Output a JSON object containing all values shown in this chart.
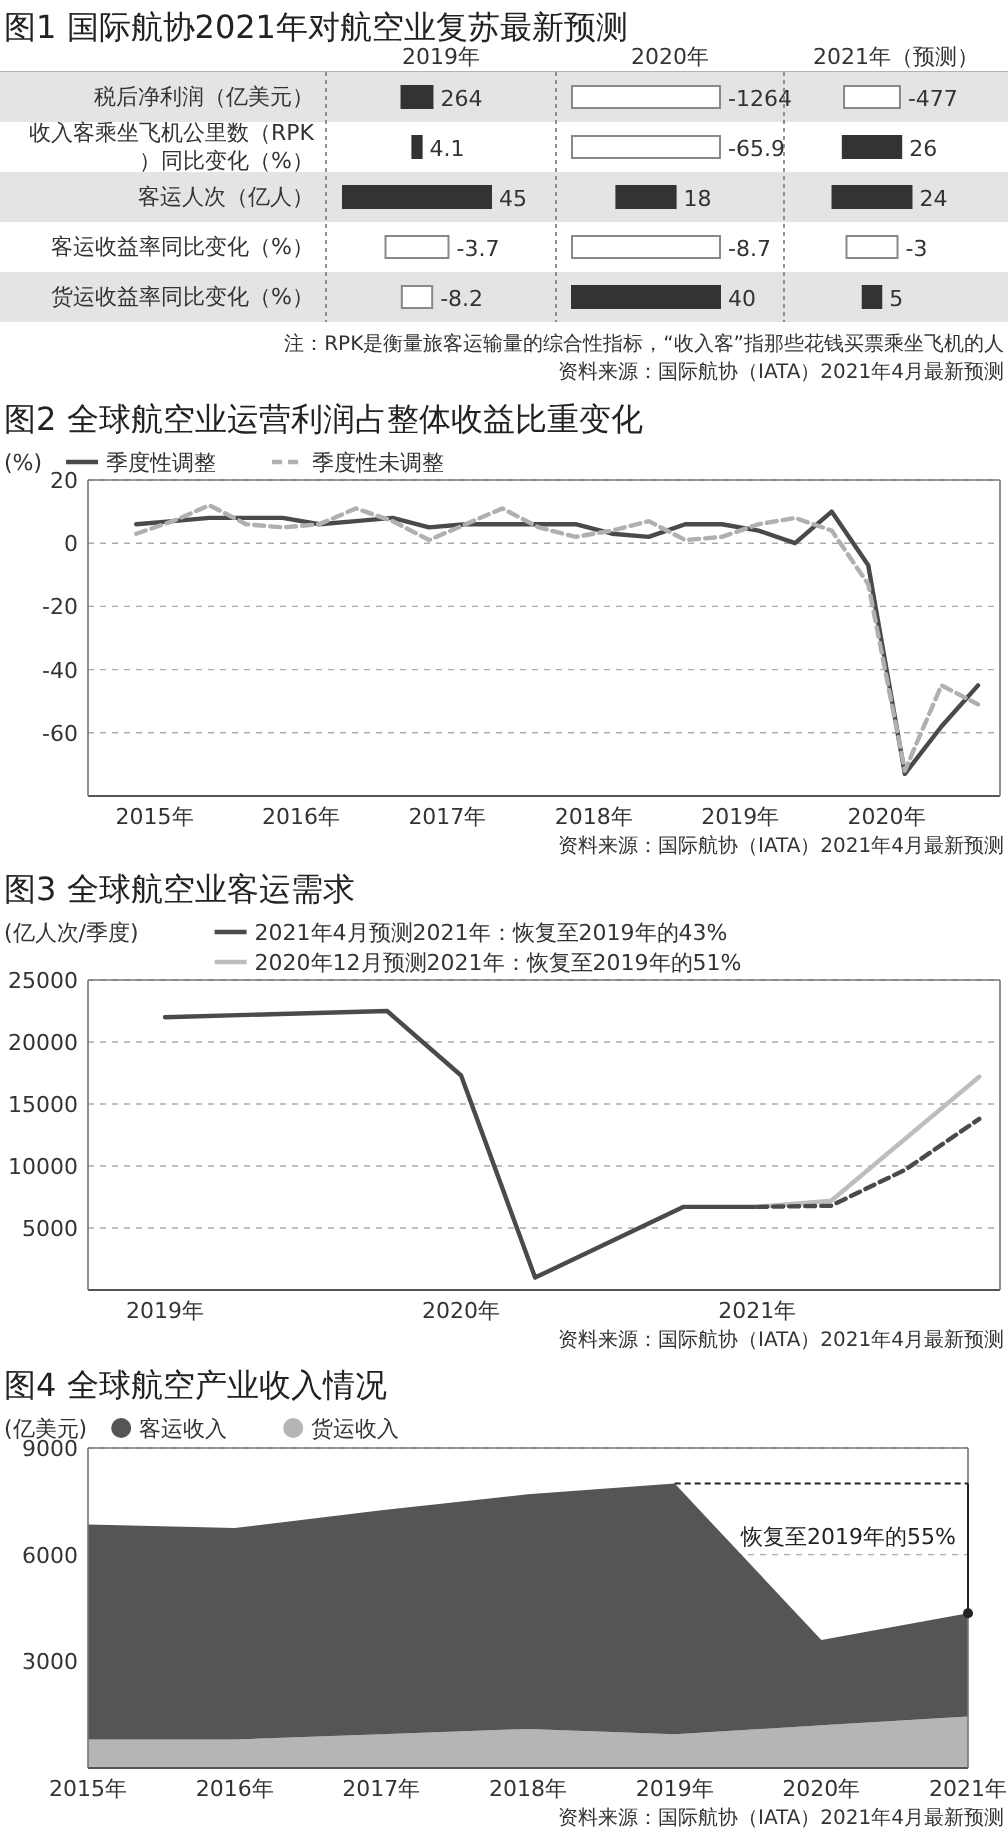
{
  "chart_data": [
    {
      "type": "heatmap",
      "title": "图1 国际航协2021年对航空业复苏最新预测",
      "categories": [
        "2019年",
        "2020年",
        "2021年（预测）"
      ],
      "y_categories": [
        "税后净利润（亿美元）",
        "收入客乘坐飞机公里数（RPK）同比变化（%）",
        "客运人次（亿人）",
        "客运收益率同比变化（%）",
        "货运收益率同比变化（%）"
      ],
      "cells": [
        [
          264,
          -1264,
          -477
        ],
        [
          4.1,
          -65.9,
          26
        ],
        [
          45,
          18,
          24
        ],
        [
          -3.7,
          -8.7,
          -3
        ],
        [
          -8.2,
          40,
          5
        ]
      ],
      "data_labels": true,
      "annotations": [
        "注：RPK是衡量旅客运输量的综合性指标，“收入客”指那些花钱买票乘坐飞机的人",
        "资料来源：国际航协（IATA）2021年4月最新预测"
      ]
    },
    {
      "type": "line",
      "title": "图2 全球航空业运营利润占整体收益比重变化",
      "ylabel": "(%)",
      "x": [
        2015,
        2015.25,
        2015.5,
        2015.75,
        2016,
        2016.25,
        2016.5,
        2016.75,
        2017,
        2017.25,
        2017.5,
        2017.75,
        2018,
        2018.25,
        2018.5,
        2018.75,
        2019,
        2019.25,
        2019.5,
        2019.75,
        2020,
        2020.25,
        2020.5,
        2020.75
      ],
      "series": [
        {
          "name": "季度性调整",
          "color": "#4a4a4a",
          "line_style": "solid",
          "values": [
            6,
            7,
            8,
            8,
            8,
            6,
            7,
            8,
            5,
            6,
            6,
            6,
            6,
            3,
            2,
            6,
            6,
            4,
            0,
            10,
            -7,
            -73,
            -58,
            -45
          ]
        },
        {
          "name": "季度性未调整",
          "color": "#b0b0b0",
          "line_style": "dashed",
          "values": [
            3,
            7,
            12,
            6,
            5,
            6,
            11,
            7,
            1,
            6,
            11,
            5,
            2,
            4,
            7,
            1,
            2,
            6,
            8,
            4,
            -13,
            -72,
            -45,
            -51
          ]
        }
      ],
      "xlim": [
        2014.67,
        2020.9
      ],
      "xticks": [
        {
          "value": 2015.125,
          "label": "2015年"
        },
        {
          "value": 2016.125,
          "label": "2016年"
        },
        {
          "value": 2017.125,
          "label": "2017年"
        },
        {
          "value": 2018.125,
          "label": "2018年"
        },
        {
          "value": 2019.125,
          "label": "2019年"
        },
        {
          "value": 2020.125,
          "label": "2020年"
        }
      ],
      "ylim": [
        -80,
        20
      ],
      "yticks": [
        -60,
        -40,
        -20,
        0,
        20
      ],
      "grid": "y",
      "legend": "top left",
      "annotations": [
        "资料来源：国际航协（IATA）2021年4月最新预测"
      ]
    },
    {
      "type": "line",
      "title": "图3 全球航空业客运需求",
      "ylabel": "(亿人次/季度)",
      "series": [
        {
          "name": "2021年4月预测2021年：恢复至2019年的43%",
          "color": "#4a4a4a",
          "line_style": "solid",
          "x": [
            2019,
            2019.75,
            2020,
            2020.25,
            2020.75,
            2021
          ],
          "values": [
            22000,
            22500,
            17300,
            1000,
            6700,
            6700
          ]
        },
        {
          "name": "2020年12月预测2021年：恢复至2019年的51%",
          "color": "#bdbdbd",
          "line_style": "solid",
          "x": [
            2021,
            2021.25,
            2021.75
          ],
          "values": [
            6700,
            7200,
            17200
          ]
        },
        {
          "color": "#4a4a4a",
          "line_style": "dashed",
          "x": [
            2021,
            2021.25,
            2021.5,
            2021.75
          ],
          "values": [
            6700,
            6800,
            9700,
            13800
          ]
        }
      ],
      "xlim": [
        2018.74,
        2021.82
      ],
      "xticks": [
        {
          "value": 2019,
          "label": "2019年"
        },
        {
          "value": 2020,
          "label": "2020年"
        },
        {
          "value": 2021,
          "label": "2021年"
        }
      ],
      "ylim": [
        0,
        25000
      ],
      "yticks": [
        5000,
        10000,
        15000,
        20000,
        25000
      ],
      "grid": "y",
      "legend": "top left",
      "annotations": [
        "资料来源：国际航协（IATA）2021年4月最新预测"
      ]
    },
    {
      "type": "area",
      "title": "图4 全球航空产业收入情况",
      "ylabel": "(亿美元)",
      "stacked": true,
      "x": [
        2015,
        2016,
        2017,
        2018,
        2019,
        2020,
        2021
      ],
      "series": [
        {
          "name": "货运收入",
          "color": "#b5b5b5",
          "values": [
            800,
            800,
            950,
            1100,
            950,
            1200,
            1450
          ]
        },
        {
          "name": "客运收入",
          "color": "#555555",
          "values": [
            6050,
            5950,
            6300,
            6600,
            7050,
            2400,
            2900
          ]
        }
      ],
      "xlim": [
        2015,
        2021
      ],
      "xticks": [
        {
          "value": 2015,
          "label": "2015年"
        },
        {
          "value": 2016,
          "label": "2016年"
        },
        {
          "value": 2017,
          "label": "2017年"
        },
        {
          "value": 2018,
          "label": "2018年"
        },
        {
          "value": 2019,
          "label": "2019年"
        },
        {
          "value": 2020,
          "label": "2020年"
        },
        {
          "value": 2021,
          "label": "2021年"
        }
      ],
      "ylim": [
        0,
        9000
      ],
      "yticks": [
        3000,
        6000,
        9000
      ],
      "grid": "y",
      "legend": "top left",
      "annotations": [
        "恢复至2019年的55%",
        "资料来源：国际航协（IATA）2021年4月最新预测"
      ]
    }
  ]
}
